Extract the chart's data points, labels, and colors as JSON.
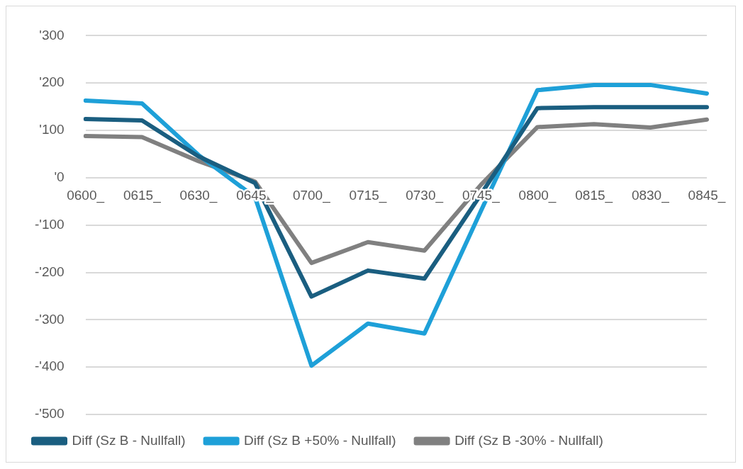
{
  "chart_data": {
    "type": "line",
    "categories": [
      "0600_",
      "0615_",
      "0630_",
      "0645_",
      "0700_",
      "0715_",
      "0730_",
      "0745_",
      "0800_",
      "0815_",
      "0830_",
      "0845_"
    ],
    "series": [
      {
        "name": "Diff (Sz B - Nullfall)",
        "color": "#1a5e80",
        "values": [
          124,
          121,
          45,
          -11,
          -251,
          -196,
          -213,
          -35,
          147,
          149,
          149,
          149
        ]
      },
      {
        "name": "Diff (Sz B +50% - Nullfall)",
        "color": "#1ea0d8",
        "values": [
          163,
          157,
          48,
          -41,
          -397,
          -308,
          -329,
          -70,
          185,
          196,
          196,
          178
        ]
      },
      {
        "name": "Diff (Sz B -30% - Nullfall)",
        "color": "#808080",
        "values": [
          88,
          86,
          35,
          -8,
          -180,
          -136,
          -154,
          -15,
          107,
          113,
          106,
          123
        ]
      }
    ],
    "ylim": [
      -500,
      300
    ],
    "yticks": [
      {
        "value": 300,
        "label": "'300"
      },
      {
        "value": 200,
        "label": "'200"
      },
      {
        "value": 100,
        "label": "'100"
      },
      {
        "value": 0,
        "label": "'0"
      },
      {
        "value": -100,
        "label": "-'100"
      },
      {
        "value": -200,
        "label": "-'200"
      },
      {
        "value": -300,
        "label": "-'300"
      },
      {
        "value": -400,
        "label": "-'400"
      },
      {
        "value": -500,
        "label": "-'500"
      }
    ],
    "grid": "y",
    "legend": "bottom",
    "marker": "none",
    "line_style": "solid"
  }
}
